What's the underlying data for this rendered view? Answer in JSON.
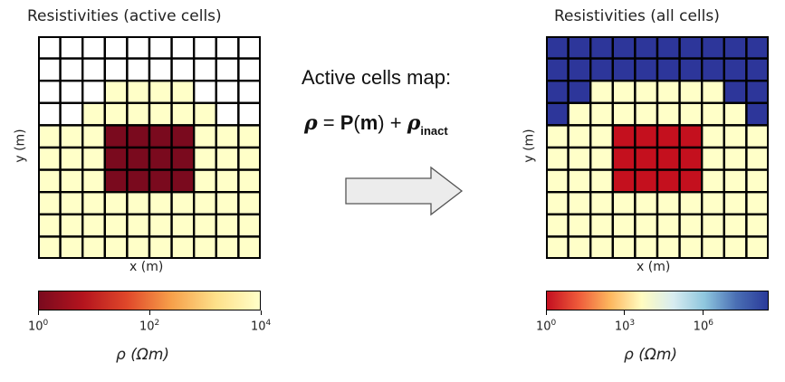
{
  "left_panel": {
    "title": "Resistivities (active cells)",
    "xlabel": "x (m)",
    "ylabel": "y (m)",
    "colorbar": {
      "ticks": [
        {
          "base": "10",
          "exp": "0",
          "frac": 0.0
        },
        {
          "base": "10",
          "exp": "2",
          "frac": 0.5
        },
        {
          "base": "10",
          "exp": "4",
          "frac": 1.0
        }
      ],
      "label_symbol": "ρ",
      "label_unit": "(Ωm)",
      "gradient": [
        "#7a0a1e",
        "#b4141e",
        "#e0482a",
        "#f7a04a",
        "#fde08a",
        "#ffffc8"
      ]
    }
  },
  "right_panel": {
    "title": "Resistivities (all cells)",
    "xlabel": "x (m)",
    "ylabel": "y (m)",
    "colorbar": {
      "ticks": [
        {
          "base": "10",
          "exp": "0",
          "frac": 0.0
        },
        {
          "base": "10",
          "exp": "3",
          "frac": 0.353
        },
        {
          "base": "10",
          "exp": "6",
          "frac": 0.706
        }
      ],
      "label_symbol": "ρ",
      "label_unit": "(Ωm)",
      "gradient": [
        "#c40f20",
        "#ee5a3a",
        "#fdb75e",
        "#fffcc0",
        "#d8ecf0",
        "#8ec6de",
        "#4a6fb4",
        "#2a3a9a"
      ]
    }
  },
  "middle": {
    "title": "Active cells map:",
    "eq_rho": "ρ",
    "eq_eq": " = ",
    "eq_P": "P",
    "eq_paren_open": "(",
    "eq_m": "m",
    "eq_paren_close": ")",
    "eq_plus": " + ",
    "eq_rho2": "ρ",
    "eq_sub": "inact"
  },
  "colors": {
    "air_active": "#ffffff",
    "background": "#ffffc8",
    "block": "#7a0a1e",
    "block_all": "#c4101e",
    "air_all": "#2d369a",
    "arrow_fill": "#ececec",
    "arrow_stroke": "#555555"
  },
  "chart_data": [
    {
      "type": "heatmap",
      "title": "Resistivities (active cells)",
      "xlabel": "x (m)",
      "ylabel": "y (m)",
      "legend": "c=inactive, b=background, r=block",
      "rows": [
        "cccccccccc",
        "cccccccccc",
        "cccbbbbccc",
        "ccbbbbbbcc",
        "bbbrrrrbbb",
        "bbbrrrrbbb",
        "bbbrrrrbbb",
        "bbbbbbbbbb",
        "bbbbbbbbbb",
        "bbbbbbbbbb"
      ]
    },
    {
      "type": "heatmap",
      "title": "Resistivities (all cells)",
      "xlabel": "x (m)",
      "ylabel": "y (m)",
      "legend": "a=air, b=background, r=block",
      "rows": [
        "aaaaaaaaaa",
        "aaaaaaaaaa",
        "aabbbbbbaa",
        "abbbbbbbba",
        "bbbrrrrbbb",
        "bbbrrrrbbb",
        "bbbrrrrbbb",
        "bbbbbbbbbb",
        "bbbbbbbbbb",
        "bbbbbbbbbb"
      ]
    }
  ]
}
